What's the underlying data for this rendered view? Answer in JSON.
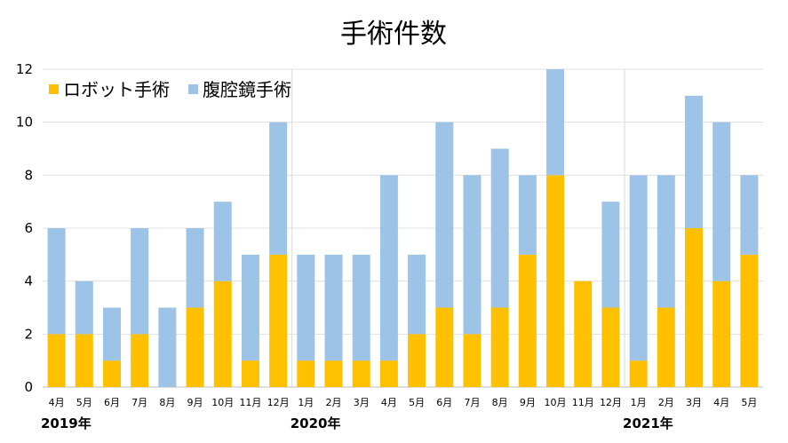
{
  "chart_data": {
    "type": "bar",
    "stacked": true,
    "title": "手術件数",
    "categories": [
      "4月",
      "5月",
      "6月",
      "7月",
      "8月",
      "9月",
      "10月",
      "11月",
      "12月",
      "1月",
      "2月",
      "3月",
      "4月",
      "5月",
      "6月",
      "7月",
      "8月",
      "9月",
      "10月",
      "11月",
      "12月",
      "1月",
      "2月",
      "3月",
      "4月",
      "5月"
    ],
    "year_labels": [
      {
        "label": "2019年",
        "start_index": 0
      },
      {
        "label": "2020年",
        "start_index": 9
      },
      {
        "label": "2021年",
        "start_index": 21
      }
    ],
    "series": [
      {
        "name": "ロボット手術",
        "color": "#FFC000",
        "values": [
          2,
          2,
          1,
          2,
          0,
          3,
          4,
          1,
          5,
          1,
          1,
          1,
          1,
          2,
          3,
          2,
          3,
          5,
          8,
          4,
          3,
          1,
          3,
          6,
          4,
          5
        ]
      },
      {
        "name": "腹腔鏡手術",
        "color": "#9DC3E6",
        "values": [
          4,
          2,
          2,
          4,
          3,
          3,
          3,
          4,
          5,
          4,
          4,
          4,
          7,
          3,
          7,
          6,
          6,
          3,
          4,
          0,
          4,
          7,
          5,
          5,
          6,
          3
        ]
      }
    ],
    "ylim": [
      0,
      12
    ],
    "yticks": [
      0,
      2,
      4,
      6,
      8,
      10,
      12
    ],
    "grid": true,
    "legend": "top-left"
  }
}
